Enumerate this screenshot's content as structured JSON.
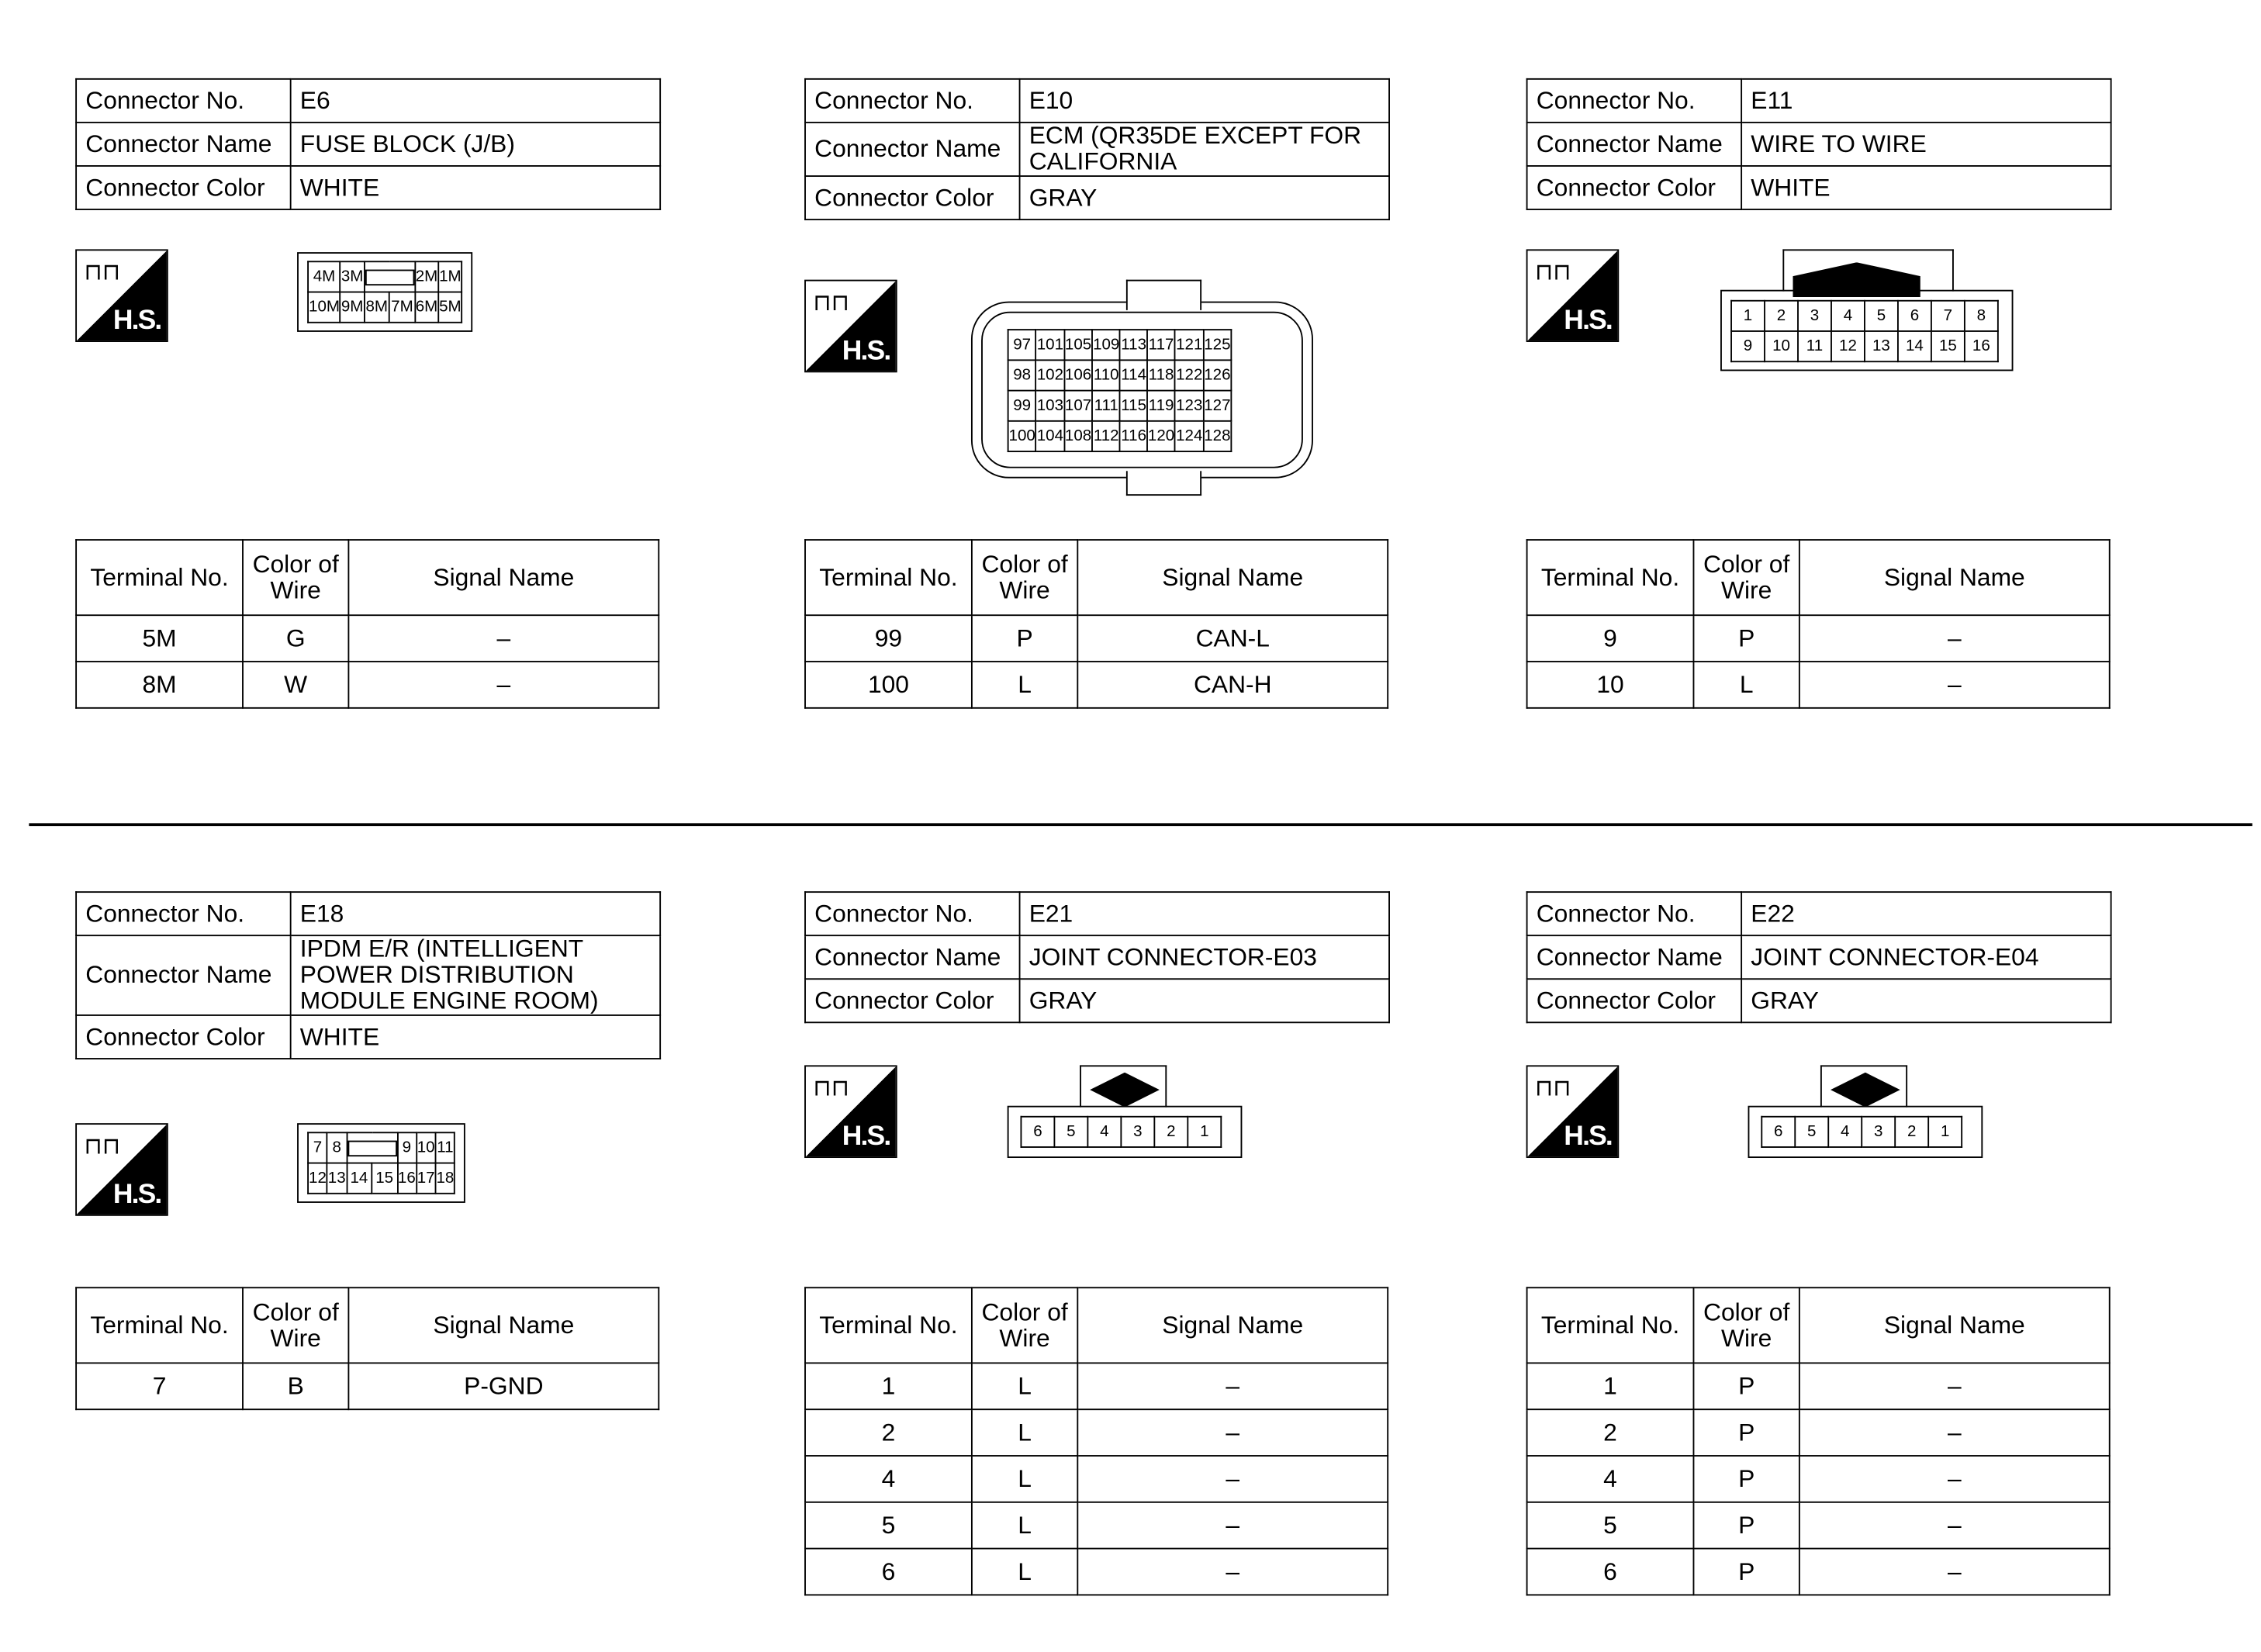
{
  "labels": {
    "connector_no": "Connector No.",
    "connector_name": "Connector Name",
    "connector_color": "Connector Color",
    "terminal_no": "Terminal No.",
    "color_of_wire": "Color of Wire",
    "signal_name": "Signal Name",
    "hs": "H.S."
  },
  "icons": {
    "harness_side": "harness-side-connector-icon"
  },
  "panels": [
    {
      "no": "E6",
      "name": "FUSE BLOCK (J/B)",
      "color": "WHITE",
      "diagram": [
        [
          [
            "4M",
            1
          ],
          [
            "3M",
            1
          ],
          [
            "",
            2,
            "slot"
          ],
          [
            "2M",
            1
          ],
          [
            "1M",
            1
          ]
        ],
        [
          [
            "10M",
            1
          ],
          [
            "9M",
            1
          ],
          [
            "8M",
            1
          ],
          [
            "7M",
            1
          ],
          [
            "6M",
            1
          ],
          [
            "5M",
            1
          ]
        ]
      ],
      "rows": [
        [
          "5M",
          "G",
          "–"
        ],
        [
          "8M",
          "W",
          "–"
        ]
      ]
    },
    {
      "no": "E10",
      "name": "ECM (QR35DE EXCEPT FOR CALIFORNIA",
      "color": "GRAY",
      "diagram": [
        [
          [
            "97",
            1
          ],
          [
            "101",
            1
          ],
          [
            "105",
            1
          ],
          [
            "109",
            1
          ],
          [
            "113",
            1
          ],
          [
            "117",
            1
          ],
          [
            "121",
            1
          ],
          [
            "125",
            1
          ]
        ],
        [
          [
            "98",
            1
          ],
          [
            "102",
            1
          ],
          [
            "106",
            1
          ],
          [
            "110",
            1
          ],
          [
            "114",
            1
          ],
          [
            "118",
            1
          ],
          [
            "122",
            1
          ],
          [
            "126",
            1
          ]
        ],
        [
          [
            "99",
            1
          ],
          [
            "103",
            1
          ],
          [
            "107",
            1
          ],
          [
            "111",
            1
          ],
          [
            "115",
            1
          ],
          [
            "119",
            1
          ],
          [
            "123",
            1
          ],
          [
            "127",
            1
          ]
        ],
        [
          [
            "100",
            1
          ],
          [
            "104",
            1
          ],
          [
            "108",
            1
          ],
          [
            "112",
            1
          ],
          [
            "116",
            1
          ],
          [
            "120",
            1
          ],
          [
            "124",
            1
          ],
          [
            "128",
            1
          ]
        ]
      ],
      "rows": [
        [
          "99",
          "P",
          "CAN-L"
        ],
        [
          "100",
          "L",
          "CAN-H"
        ]
      ]
    },
    {
      "no": "E11",
      "name": "WIRE TO WIRE",
      "color": "WHITE",
      "diagram": [
        [
          [
            "1",
            1
          ],
          [
            "2",
            1
          ],
          [
            "3",
            1
          ],
          [
            "4",
            1
          ],
          [
            "5",
            1
          ],
          [
            "6",
            1
          ],
          [
            "7",
            1
          ],
          [
            "8",
            1
          ]
        ],
        [
          [
            "9",
            1
          ],
          [
            "10",
            1
          ],
          [
            "11",
            1
          ],
          [
            "12",
            1
          ],
          [
            "13",
            1
          ],
          [
            "14",
            1
          ],
          [
            "15",
            1
          ],
          [
            "16",
            1
          ]
        ]
      ],
      "rows": [
        [
          "9",
          "P",
          "–"
        ],
        [
          "10",
          "L",
          "–"
        ]
      ]
    },
    {
      "no": "E18",
      "name": "IPDM E/R (INTELLIGENT POWER DISTRIBUTION MODULE ENGINE ROOM)",
      "color": "WHITE",
      "diagram": [
        [
          [
            "7",
            1
          ],
          [
            "8",
            1
          ],
          [
            "",
            2,
            "slot"
          ],
          [
            "9",
            1
          ],
          [
            "10",
            1
          ],
          [
            "11",
            1
          ]
        ],
        [
          [
            "12",
            1
          ],
          [
            "13",
            1
          ],
          [
            "14",
            1
          ],
          [
            "15",
            1
          ],
          [
            "16",
            1
          ],
          [
            "17",
            1
          ],
          [
            "18",
            1
          ]
        ]
      ],
      "rows": [
        [
          "7",
          "B",
          "P-GND"
        ]
      ]
    },
    {
      "no": "E21",
      "name": "JOINT CONNECTOR-E03",
      "color": "GRAY",
      "diagram": [
        [
          [
            "6",
            1
          ],
          [
            "5",
            1
          ],
          [
            "4",
            1
          ],
          [
            "3",
            1
          ],
          [
            "2",
            1
          ],
          [
            "1",
            1
          ]
        ]
      ],
      "rows": [
        [
          "1",
          "L",
          "–"
        ],
        [
          "2",
          "L",
          "–"
        ],
        [
          "4",
          "L",
          "–"
        ],
        [
          "5",
          "L",
          "–"
        ],
        [
          "6",
          "L",
          "–"
        ]
      ]
    },
    {
      "no": "E22",
      "name": "JOINT CONNECTOR-E04",
      "color": "GRAY",
      "diagram": [
        [
          [
            "6",
            1
          ],
          [
            "5",
            1
          ],
          [
            "4",
            1
          ],
          [
            "3",
            1
          ],
          [
            "2",
            1
          ],
          [
            "1",
            1
          ]
        ]
      ],
      "rows": [
        [
          "1",
          "P",
          "–"
        ],
        [
          "2",
          "P",
          "–"
        ],
        [
          "4",
          "P",
          "–"
        ],
        [
          "5",
          "P",
          "–"
        ],
        [
          "6",
          "P",
          "–"
        ]
      ]
    }
  ]
}
